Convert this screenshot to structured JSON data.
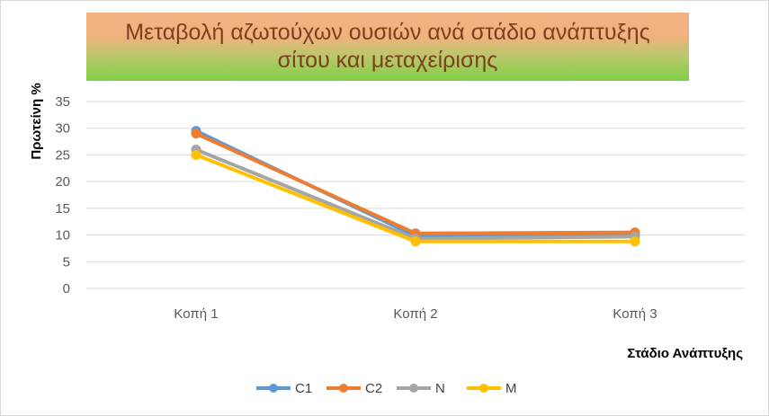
{
  "chart_data": {
    "type": "line",
    "title_lines": [
      "Μεταβολή αζωτούχων ουσιών ανά στάδιο ανάπτυξης",
      "σίτου και μεταχείρισης"
    ],
    "xlabel": "Στάδιο Ανάπτυξης",
    "ylabel": "Πρωτείνη %",
    "categories": [
      "Κοπή 1",
      "Κοπή 2",
      "Κοπή 3"
    ],
    "ylim": [
      0,
      35
    ],
    "yticks": [
      0,
      5,
      10,
      15,
      20,
      25,
      30,
      35
    ],
    "grid": true,
    "legend_position": "bottom",
    "series": [
      {
        "name": "C1",
        "color": "#5b9bd5",
        "values": [
          29.5,
          9.8,
          10.0
        ]
      },
      {
        "name": "C2",
        "color": "#ed7d31",
        "values": [
          29.0,
          10.3,
          10.5
        ]
      },
      {
        "name": "N",
        "color": "#a5a5a5",
        "values": [
          26.0,
          9.3,
          9.7
        ]
      },
      {
        "name": "M",
        "color": "#ffc000",
        "values": [
          25.0,
          8.8,
          8.8
        ]
      }
    ]
  }
}
